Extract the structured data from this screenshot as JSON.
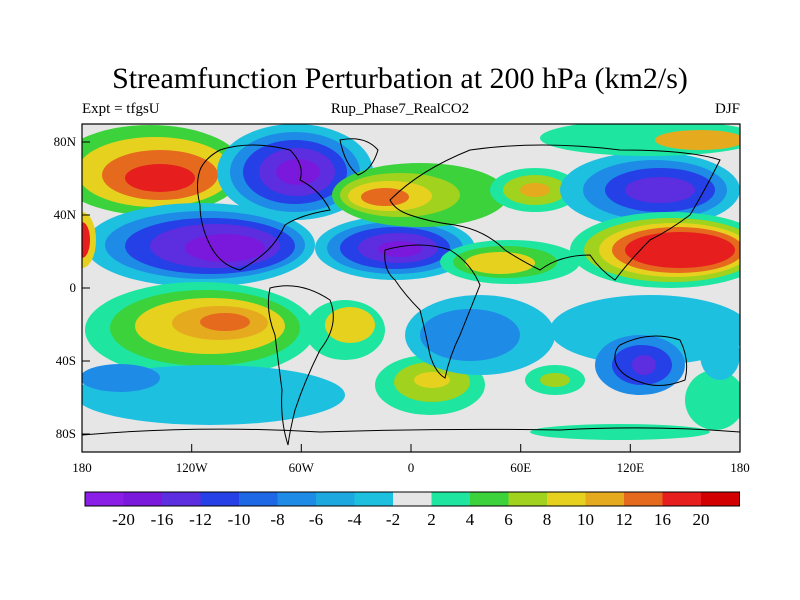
{
  "title": "Streamfunction Perturbation at 200 hPa (km2/s)",
  "subtitle_left": "Expt = tfgsU",
  "subtitle_center": "Rup_Phase7_RealCO2",
  "subtitle_right": "DJF",
  "lat_ticks": [
    "80N",
    "40N",
    "0",
    "40S",
    "80S"
  ],
  "lon_ticks": [
    "180",
    "120W",
    "60W",
    "0",
    "60E",
    "120E",
    "180"
  ],
  "colorbar": {
    "levels": [
      "-20",
      "-16",
      "-12",
      "-10",
      "-8",
      "-6",
      "-4",
      "-2",
      "2",
      "4",
      "6",
      "8",
      "10",
      "12",
      "16",
      "20"
    ],
    "colors": [
      "#8a1ee6",
      "#7a19dc",
      "#5c2ee0",
      "#2440e6",
      "#1e68e6",
      "#1e8ce6",
      "#1ea8e0",
      "#1ec0e0",
      "#e6e6e6",
      "#1ee6a0",
      "#3cd23c",
      "#a0d21e",
      "#e6d21e",
      "#e6aa1e",
      "#e66a1e",
      "#e61e1e",
      "#d20000"
    ]
  },
  "colors": {
    "neutral": "#e6e6e6",
    "coast": "#000000"
  }
}
